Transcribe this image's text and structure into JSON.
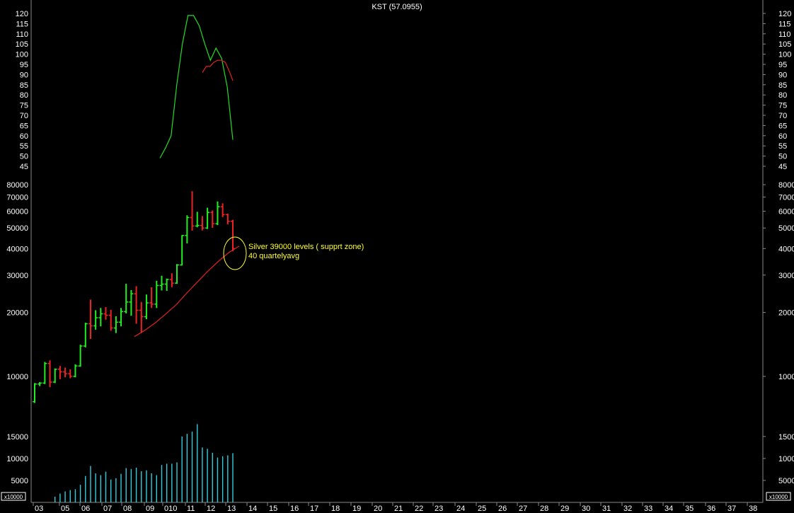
{
  "chart_data": {
    "type": "bar",
    "title": "KST (57.0955)",
    "x_tick_labels": [
      "03",
      "05",
      "06",
      "07",
      "08",
      "09",
      "010",
      "11",
      "12",
      "13",
      "14",
      "15",
      "16",
      "17",
      "18",
      "19",
      "20",
      "21",
      "22",
      "23",
      "24",
      "25",
      "26",
      "27",
      "28",
      "29",
      "30",
      "31",
      "32",
      "33",
      "34",
      "35",
      "36",
      "37",
      "38"
    ],
    "x_tick_label_positions_in_periods": [
      1,
      6,
      12,
      18,
      24,
      30,
      36,
      42,
      48,
      54,
      60,
      66,
      72,
      78,
      84,
      90,
      96,
      102,
      108,
      114,
      120,
      126,
      132,
      138,
      144,
      150,
      156,
      162,
      168,
      174,
      180,
      186,
      192,
      198,
      204
    ],
    "price_panel": {
      "scale": "log",
      "ylim": [
        8000,
        80000
      ],
      "yticks": [
        10000,
        20000,
        30000,
        40000,
        50000,
        60000,
        70000,
        80000
      ],
      "bars": [
        {
          "o": 7600,
          "h": 9300,
          "l": 7500,
          "c": 9200
        },
        {
          "o": 9200,
          "h": 9400,
          "l": 9000,
          "c": 9300
        },
        {
          "o": 9300,
          "h": 11700,
          "l": 9200,
          "c": 11500
        },
        {
          "o": 11500,
          "h": 11900,
          "l": 8900,
          "c": 9400
        },
        {
          "o": 9400,
          "h": 10900,
          "l": 9300,
          "c": 10800
        },
        {
          "o": 10800,
          "h": 11200,
          "l": 9700,
          "c": 10500
        },
        {
          "o": 10500,
          "h": 11000,
          "l": 9900,
          "c": 10300
        },
        {
          "o": 10300,
          "h": 10800,
          "l": 9800,
          "c": 10000
        },
        {
          "o": 10000,
          "h": 11400,
          "l": 9900,
          "c": 11200
        },
        {
          "o": 11200,
          "h": 14100,
          "l": 11100,
          "c": 13900
        },
        {
          "o": 13900,
          "h": 17900,
          "l": 13700,
          "c": 17700
        },
        {
          "o": 17700,
          "h": 23000,
          "l": 15000,
          "c": 17300
        },
        {
          "o": 17300,
          "h": 20500,
          "l": 16600,
          "c": 18900
        },
        {
          "o": 18900,
          "h": 21000,
          "l": 17200,
          "c": 19700
        },
        {
          "o": 19700,
          "h": 21200,
          "l": 18500,
          "c": 19400
        },
        {
          "o": 19400,
          "h": 20600,
          "l": 16400,
          "c": 16900
        },
        {
          "o": 16900,
          "h": 19200,
          "l": 16000,
          "c": 18000
        },
        {
          "o": 18000,
          "h": 21000,
          "l": 17200,
          "c": 20200
        },
        {
          "o": 20200,
          "h": 27300,
          "l": 19800,
          "c": 22400
        },
        {
          "o": 22400,
          "h": 25500,
          "l": 19300,
          "c": 24500
        },
        {
          "o": 24500,
          "h": 26600,
          "l": 17700,
          "c": 20500
        },
        {
          "o": 20500,
          "h": 22400,
          "l": 16000,
          "c": 19100
        },
        {
          "o": 19100,
          "h": 24300,
          "l": 18600,
          "c": 22200
        },
        {
          "o": 22200,
          "h": 26300,
          "l": 21000,
          "c": 21900
        },
        {
          "o": 21900,
          "h": 28200,
          "l": 21000,
          "c": 26800
        },
        {
          "o": 26800,
          "h": 29800,
          "l": 25400,
          "c": 27200
        },
        {
          "o": 27200,
          "h": 28900,
          "l": 25300,
          "c": 28600
        },
        {
          "o": 28600,
          "h": 30600,
          "l": 26300,
          "c": 27500
        },
        {
          "o": 27500,
          "h": 33800,
          "l": 27300,
          "c": 33500
        },
        {
          "o": 33500,
          "h": 46300,
          "l": 33300,
          "c": 46100
        },
        {
          "o": 46100,
          "h": 57400,
          "l": 42300,
          "c": 56000
        },
        {
          "o": 56000,
          "h": 74500,
          "l": 48600,
          "c": 51100
        },
        {
          "o": 51100,
          "h": 59600,
          "l": 50400,
          "c": 51400
        },
        {
          "o": 51400,
          "h": 56900,
          "l": 48700,
          "c": 50000
        },
        {
          "o": 50000,
          "h": 62300,
          "l": 49500,
          "c": 59200
        },
        {
          "o": 59200,
          "h": 60500,
          "l": 50100,
          "c": 52400
        },
        {
          "o": 52400,
          "h": 66700,
          "l": 51600,
          "c": 63000
        },
        {
          "o": 63000,
          "h": 65400,
          "l": 56300,
          "c": 57800
        },
        {
          "o": 57800,
          "h": 58400,
          "l": 52000,
          "c": 53800
        },
        {
          "o": 53800,
          "h": 54600,
          "l": 38900,
          "c": 40000
        }
      ],
      "moving_average": {
        "label": "40 quartelyavg",
        "values": [
          15400,
          16500,
          17900,
          19700,
          21800,
          24700,
          27800,
          31300,
          34800,
          38300,
          41100
        ]
      },
      "annotation": {
        "text": "Silver 39000 levels ( supprt zone)",
        "near_value": 39000
      }
    },
    "kst_panel": {
      "ylim": [
        45,
        120
      ],
      "yticks": [
        45,
        50,
        55,
        60,
        65,
        70,
        75,
        80,
        85,
        90,
        95,
        100,
        105,
        110,
        115,
        120
      ],
      "kst": [
        49,
        54,
        60,
        85,
        105,
        119,
        119,
        114,
        105,
        97,
        103,
        98,
        84,
        58
      ],
      "signal": [
        91,
        94,
        94,
        96,
        97,
        97,
        96,
        92,
        87
      ]
    },
    "volume_panel": {
      "unit_label": "x10000",
      "yticks": [
        5000,
        10000,
        15000
      ],
      "ymax": 19000,
      "values": [
        0,
        0,
        0,
        0,
        1300,
        2000,
        2500,
        2800,
        3000,
        4000,
        6000,
        8300,
        6600,
        6200,
        7000,
        5200,
        5500,
        6500,
        7800,
        7600,
        7900,
        7100,
        7300,
        6600,
        6200,
        8500,
        8800,
        8800,
        9100,
        15000,
        15600,
        16100,
        17800,
        12500,
        12200,
        11300,
        10200,
        10500,
        10700,
        11200
      ]
    }
  }
}
